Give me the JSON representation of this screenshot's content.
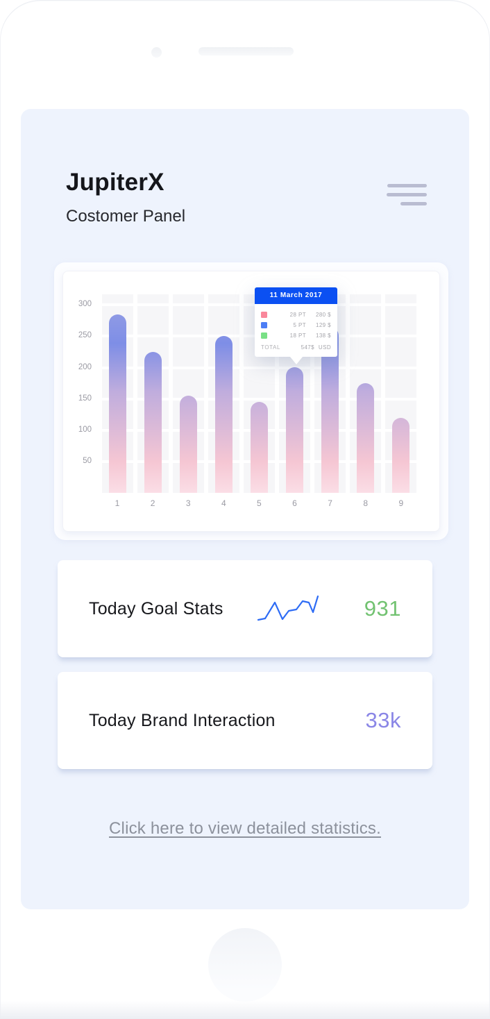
{
  "app": {
    "title": "JupiterX",
    "subtitle": "Costomer Panel"
  },
  "chart_data": {
    "type": "bar",
    "categories": [
      "1",
      "2",
      "3",
      "4",
      "5",
      "6",
      "7",
      "8",
      "9"
    ],
    "values": [
      285,
      225,
      155,
      250,
      145,
      200,
      265,
      175,
      120
    ],
    "y_ticks": [
      50,
      100,
      150,
      200,
      250,
      300
    ],
    "ylim": [
      0,
      317
    ],
    "grid": true,
    "bar_gradient": [
      "#7e8ee6",
      "#c0addd",
      "#f5c6d3"
    ],
    "tooltip": {
      "date": "11 March 2017",
      "rows": [
        {
          "swatch_color": "#f9879b",
          "pt": "28 PT",
          "price": "280 $"
        },
        {
          "swatch_color": "#4d7ef5",
          "pt": "5 PT",
          "price": "129 $"
        },
        {
          "swatch_color": "#79e086",
          "pt": "18 PT",
          "price": "138 $"
        }
      ],
      "total_label": "TOTAL",
      "total_value": "547$",
      "total_currency": "USD",
      "header_color": "#0b50f2"
    }
  },
  "cards": [
    {
      "title": "Today Goal Stats",
      "value": "931",
      "value_color": "#72c271"
    },
    {
      "title": "Today Brand Interaction",
      "value": "33k",
      "value_color": "#8a86e6"
    }
  ],
  "sparkline": {
    "color": "#2e6cf5",
    "points": [
      [
        2,
        36
      ],
      [
        12,
        34
      ],
      [
        26,
        11
      ],
      [
        37,
        35
      ],
      [
        46,
        23
      ],
      [
        57,
        21
      ],
      [
        66,
        9
      ],
      [
        75,
        11
      ],
      [
        81,
        25
      ],
      [
        88,
        2
      ]
    ]
  },
  "link": {
    "label": "Click here to view detailed statistics."
  }
}
